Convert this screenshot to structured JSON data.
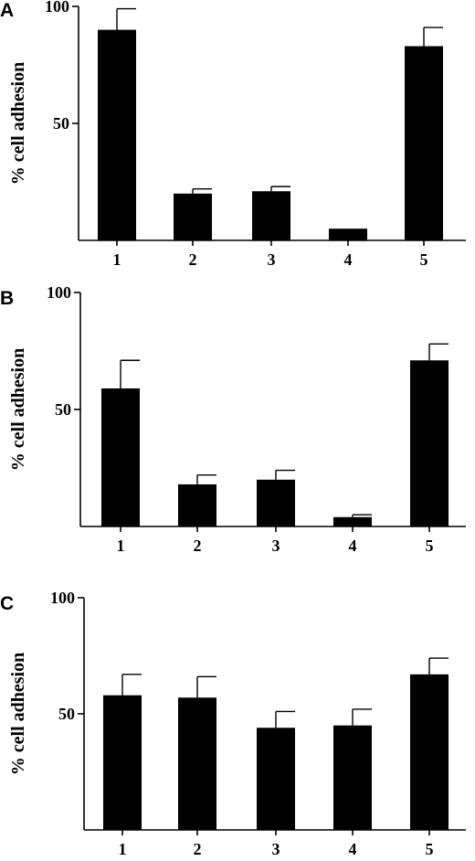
{
  "chart_data": [
    {
      "type": "bar",
      "panel_label": "A",
      "ylabel": "% cell adhesion",
      "xlabel": "",
      "categories": [
        "1",
        "2",
        "3",
        "4",
        "5"
      ],
      "values": [
        90,
        20,
        21,
        5,
        83
      ],
      "errors": [
        9,
        2,
        2,
        0,
        8
      ],
      "ylim": [
        0,
        100
      ],
      "yticks": [
        50,
        100
      ],
      "ytick_labels": [
        "50",
        "100"
      ]
    },
    {
      "type": "bar",
      "panel_label": "B",
      "ylabel": "% cell adhesion",
      "xlabel": "",
      "categories": [
        "1",
        "2",
        "3",
        "4",
        "5"
      ],
      "values": [
        59,
        18,
        20,
        4,
        71
      ],
      "errors": [
        12,
        4,
        4,
        1,
        7
      ],
      "ylim": [
        0,
        100
      ],
      "yticks": [
        50,
        100
      ],
      "ytick_labels": [
        "50",
        "100"
      ]
    },
    {
      "type": "bar",
      "panel_label": "C",
      "ylabel": "% cell adhesion",
      "xlabel": "",
      "categories": [
        "1",
        "2",
        "3",
        "4",
        "5"
      ],
      "values": [
        58,
        57,
        44,
        45,
        67
      ],
      "errors": [
        9,
        9,
        7,
        7,
        7
      ],
      "ylim": [
        0,
        100
      ],
      "yticks": [
        50,
        100
      ],
      "ytick_labels": [
        "50",
        "100"
      ]
    }
  ]
}
